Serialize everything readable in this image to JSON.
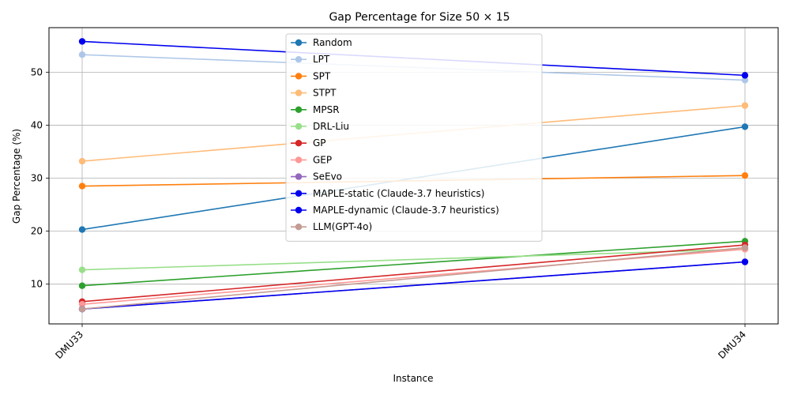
{
  "chart_data": {
    "type": "line",
    "title": "Gap Percentage for Size 50 × 15",
    "xlabel": "Instance",
    "ylabel": "Gap Percentage (%)",
    "categories": [
      "DMU33",
      "DMU34"
    ],
    "ylim": [
      2.5,
      58.4
    ],
    "yticks": [
      10,
      20,
      30,
      40,
      50
    ],
    "grid": true,
    "legend_position": "top-center",
    "series": [
      {
        "name": "Random",
        "color": "#1f77b4",
        "values": [
          20.3,
          39.7
        ]
      },
      {
        "name": "LPT",
        "color": "#aec7e8",
        "values": [
          53.3,
          48.5
        ]
      },
      {
        "name": "SPT",
        "color": "#ff7f0e",
        "values": [
          28.5,
          30.5
        ]
      },
      {
        "name": "STPT",
        "color": "#ffbb78",
        "values": [
          33.2,
          43.7
        ]
      },
      {
        "name": "MPSR",
        "color": "#2ca02c",
        "values": [
          9.7,
          18.1
        ]
      },
      {
        "name": "DRL-Liu",
        "color": "#98df8a",
        "values": [
          12.7,
          16.6
        ]
      },
      {
        "name": "GP",
        "color": "#d62728",
        "values": [
          6.7,
          17.4
        ]
      },
      {
        "name": "GEP",
        "color": "#ff9896",
        "values": [
          6.2,
          16.6
        ]
      },
      {
        "name": "SeEvo",
        "color": "#9467bd",
        "values": [
          5.3,
          14.2
        ]
      },
      {
        "name": "MAPLE-static (Claude-3.7 heuristics)",
        "color": "#0000ee",
        "values": [
          55.8,
          49.4
        ]
      },
      {
        "name": "MAPLE-dynamic (Claude-3.7 heuristics)",
        "color": "#0000ee",
        "values": [
          5.3,
          14.2
        ]
      },
      {
        "name": "LLM(GPT-4o)",
        "color": "#c49c94",
        "values": [
          5.3,
          16.9
        ]
      }
    ]
  }
}
